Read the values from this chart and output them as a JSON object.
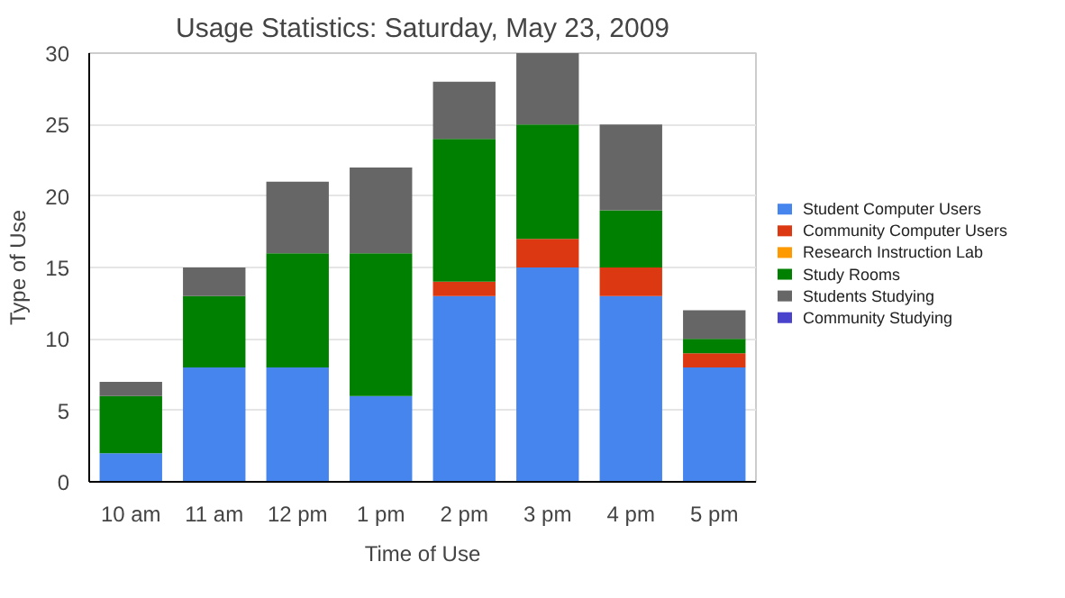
{
  "chart_data": {
    "type": "bar",
    "stacked": true,
    "title": "Usage Statistics: Saturday, May 23, 2009",
    "xlabel": "Time of Use",
    "ylabel": "Type of Use",
    "categories": [
      "10 am",
      "11 am",
      "12 pm",
      "1 pm",
      "2 pm",
      "3 pm",
      "4 pm",
      "5 pm"
    ],
    "series": [
      {
        "name": "Student Computer Users",
        "color": "#4684ee",
        "values": [
          2,
          8,
          8,
          6,
          13,
          15,
          13,
          8
        ]
      },
      {
        "name": "Community Computer Users",
        "color": "#dc3912",
        "values": [
          0,
          0,
          0,
          0,
          1,
          2,
          2,
          1
        ]
      },
      {
        "name": "Research Instruction Lab",
        "color": "#ff9900",
        "values": [
          0,
          0,
          0,
          0,
          0,
          0,
          0,
          0
        ]
      },
      {
        "name": "Study Rooms",
        "color": "#008000",
        "values": [
          4,
          5,
          8,
          10,
          10,
          8,
          4,
          1
        ]
      },
      {
        "name": "Students Studying",
        "color": "#666666",
        "values": [
          1,
          2,
          5,
          6,
          4,
          5,
          6,
          2
        ]
      },
      {
        "name": "Community Studying",
        "color": "#4942cc",
        "values": [
          0,
          0,
          0,
          0,
          0,
          0,
          0,
          0
        ]
      }
    ],
    "ylim": [
      0,
      30
    ],
    "yticks": [
      0,
      5,
      10,
      15,
      20,
      25,
      30
    ],
    "grid": "y",
    "legend": "right"
  }
}
